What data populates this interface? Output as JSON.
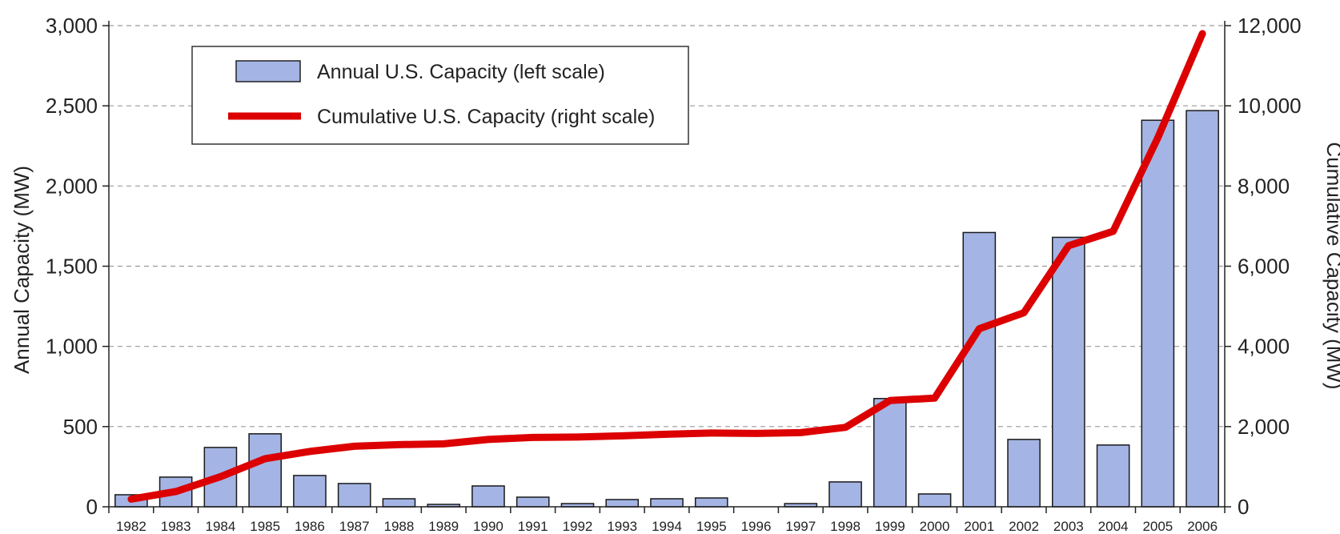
{
  "chart_data": {
    "type": "bar",
    "categories": [
      "1982",
      "1983",
      "1984",
      "1985",
      "1986",
      "1987",
      "1988",
      "1989",
      "1990",
      "1991",
      "1992",
      "1993",
      "1994",
      "1995",
      "1996",
      "1997",
      "1998",
      "1999",
      "2000",
      "2001",
      "2002",
      "2003",
      "2004",
      "2005",
      "2006"
    ],
    "series": [
      {
        "name": "Annual U.S. Capacity (left scale)",
        "type": "bar",
        "axis": "left",
        "color": "#a4b4e4",
        "values": [
          75,
          185,
          370,
          455,
          195,
          145,
          50,
          15,
          130,
          60,
          20,
          45,
          50,
          55,
          0,
          20,
          155,
          675,
          80,
          1710,
          420,
          1680,
          385,
          2410,
          2470
        ]
      },
      {
        "name": "Cumulative U.S. Capacity (right scale)",
        "type": "line",
        "axis": "right",
        "color": "#dc0000",
        "values": [
          190,
          380,
          750,
          1200,
          1380,
          1510,
          1550,
          1570,
          1680,
          1730,
          1740,
          1770,
          1810,
          1840,
          1830,
          1850,
          1980,
          2650,
          2710,
          4440,
          4840,
          6510,
          6870,
          9200,
          11800
        ]
      }
    ],
    "ylabel": "Annual Capacity (MW)",
    "ylabel_right": "Cumulative Capacity (MW)",
    "xlabel": "",
    "ylim": [
      0,
      3000
    ],
    "ylim_right": [
      0,
      12000
    ],
    "yticks": [
      "0",
      "500",
      "1,000",
      "1,500",
      "2,000",
      "2,500",
      "3,000"
    ],
    "yticks_right": [
      "0",
      "2,000",
      "4,000",
      "6,000",
      "8,000",
      "10,000",
      "12,000"
    ],
    "grid": "horizontal-dashed",
    "legend": "top-left"
  }
}
